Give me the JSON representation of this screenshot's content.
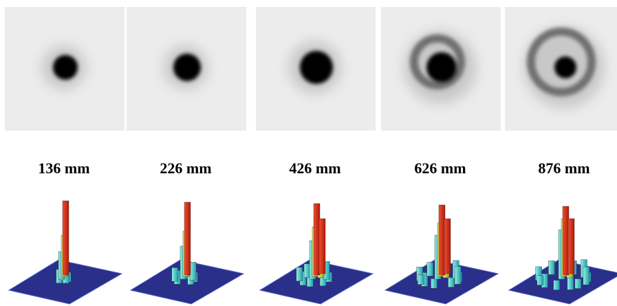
{
  "panels": [
    {
      "label": "136 mm"
    },
    {
      "label": "226 mm"
    },
    {
      "label": "426 mm"
    },
    {
      "label": "626 mm"
    },
    {
      "label": "876 mm"
    }
  ]
}
